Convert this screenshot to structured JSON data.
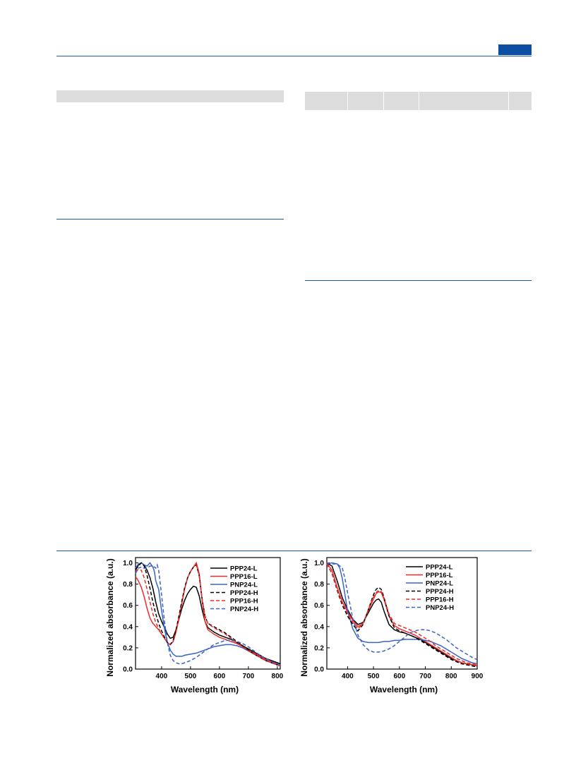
{
  "colors": {
    "header_rule": "#1b5aa6",
    "header_badge": "#0b4ea2",
    "table_band": "#dcdcdc",
    "series_black": "#000000",
    "series_red": "#ee2b2b",
    "series_blue": "#3a62c8"
  },
  "chart_data": [
    {
      "type": "line",
      "ylabel": "Normalized absorbance (a.u.)",
      "xlabel": "Wavelength (nm)",
      "xlim": [
        310,
        810
      ],
      "ylim": [
        0,
        1.05
      ],
      "xticks": [
        "400",
        "500",
        "600",
        "700",
        "800"
      ],
      "yticks": [
        "0.0",
        "0.2",
        "0.4",
        "0.6",
        "0.8",
        "1.0"
      ],
      "legend_position": "top-right",
      "series": [
        {
          "name": "PPP24-L",
          "color": "#000000",
          "dash": "solid",
          "x": [
            310,
            320,
            330,
            340,
            350,
            360,
            370,
            380,
            390,
            400,
            410,
            420,
            430,
            440,
            450,
            460,
            470,
            480,
            490,
            500,
            510,
            520,
            530,
            540,
            550,
            560,
            580,
            600,
            620,
            640,
            660,
            680,
            700,
            720,
            740,
            760,
            780,
            800,
            810
          ],
          "y": [
            0.93,
            0.98,
            1.0,
            0.98,
            0.93,
            0.86,
            0.76,
            0.63,
            0.52,
            0.45,
            0.39,
            0.33,
            0.29,
            0.3,
            0.37,
            0.47,
            0.57,
            0.65,
            0.71,
            0.75,
            0.78,
            0.77,
            0.69,
            0.56,
            0.45,
            0.39,
            0.35,
            0.32,
            0.3,
            0.28,
            0.25,
            0.22,
            0.19,
            0.16,
            0.13,
            0.1,
            0.08,
            0.06,
            0.05
          ]
        },
        {
          "name": "PPP16-L",
          "color": "#ee2b2b",
          "dash": "solid",
          "x": [
            310,
            320,
            330,
            340,
            350,
            360,
            370,
            380,
            390,
            400,
            410,
            420,
            430,
            440,
            450,
            460,
            470,
            480,
            490,
            500,
            510,
            520,
            530,
            540,
            550,
            560,
            580,
            600,
            620,
            640,
            660,
            680,
            700,
            720,
            740,
            760,
            780,
            800,
            810
          ],
          "y": [
            0.87,
            0.83,
            0.77,
            0.68,
            0.57,
            0.48,
            0.43,
            0.4,
            0.37,
            0.33,
            0.29,
            0.25,
            0.23,
            0.26,
            0.35,
            0.48,
            0.62,
            0.76,
            0.86,
            0.92,
            0.96,
            1.0,
            0.9,
            0.65,
            0.45,
            0.37,
            0.33,
            0.3,
            0.28,
            0.26,
            0.24,
            0.21,
            0.18,
            0.15,
            0.12,
            0.09,
            0.07,
            0.05,
            0.04
          ]
        },
        {
          "name": "PNP24-L",
          "color": "#3a62c8",
          "dash": "solid",
          "x": [
            310,
            320,
            330,
            340,
            350,
            360,
            370,
            375,
            380,
            390,
            400,
            410,
            420,
            430,
            440,
            450,
            460,
            470,
            480,
            500,
            520,
            540,
            560,
            580,
            600,
            620,
            640,
            660,
            680,
            700,
            720,
            740,
            760,
            780,
            800,
            810
          ],
          "y": [
            0.95,
            0.99,
            1.0,
            0.98,
            0.97,
            1.0,
            0.96,
            0.92,
            0.83,
            0.75,
            0.55,
            0.38,
            0.25,
            0.18,
            0.14,
            0.12,
            0.12,
            0.12,
            0.13,
            0.14,
            0.15,
            0.17,
            0.19,
            0.21,
            0.22,
            0.23,
            0.23,
            0.22,
            0.2,
            0.17,
            0.14,
            0.11,
            0.08,
            0.06,
            0.04,
            0.03
          ]
        },
        {
          "name": "PPP24-H",
          "color": "#000000",
          "dash": "dashed",
          "x": [
            310,
            320,
            330,
            340,
            350,
            360,
            370,
            380,
            390,
            400,
            410,
            420,
            430,
            440,
            450,
            460,
            470,
            480,
            490,
            500,
            510,
            520,
            530,
            540,
            550,
            560,
            580,
            600,
            620,
            640,
            660,
            680,
            700,
            720,
            740,
            760,
            780,
            800,
            810
          ],
          "y": [
            0.94,
            0.97,
            1.0,
            0.97,
            0.88,
            0.76,
            0.63,
            0.52,
            0.43,
            0.36,
            0.3,
            0.25,
            0.23,
            0.27,
            0.37,
            0.5,
            0.64,
            0.77,
            0.86,
            0.92,
            0.96,
            0.98,
            0.88,
            0.66,
            0.5,
            0.43,
            0.4,
            0.37,
            0.34,
            0.3,
            0.26,
            0.22,
            0.18,
            0.14,
            0.11,
            0.08,
            0.06,
            0.04,
            0.03
          ]
        },
        {
          "name": "PPP16-H",
          "color": "#ee2b2b",
          "dash": "dashed",
          "x": [
            310,
            320,
            330,
            340,
            350,
            360,
            370,
            380,
            390,
            400,
            410,
            420,
            430,
            440,
            450,
            460,
            470,
            480,
            490,
            500,
            510,
            520,
            530,
            540,
            550,
            560,
            580,
            600,
            620,
            640,
            660,
            680,
            700,
            720,
            740,
            760,
            780,
            800,
            810
          ],
          "y": [
            0.92,
            0.94,
            0.93,
            0.86,
            0.75,
            0.63,
            0.52,
            0.44,
            0.38,
            0.33,
            0.29,
            0.25,
            0.23,
            0.26,
            0.35,
            0.48,
            0.62,
            0.76,
            0.86,
            0.92,
            0.96,
            0.99,
            0.88,
            0.66,
            0.5,
            0.43,
            0.39,
            0.36,
            0.33,
            0.29,
            0.25,
            0.21,
            0.17,
            0.14,
            0.11,
            0.08,
            0.06,
            0.04,
            0.03
          ]
        },
        {
          "name": "PNP24-H",
          "color": "#3a62c8",
          "dash": "dashed",
          "x": [
            310,
            320,
            330,
            340,
            350,
            360,
            370,
            380,
            385,
            390,
            400,
            410,
            420,
            430,
            440,
            450,
            460,
            470,
            480,
            500,
            520,
            540,
            560,
            580,
            600,
            620,
            640,
            660,
            680,
            700,
            720,
            740,
            760,
            780,
            800,
            810
          ],
          "y": [
            0.9,
            0.95,
            0.96,
            0.95,
            0.95,
            0.97,
            0.97,
            0.95,
            0.98,
            0.93,
            0.7,
            0.45,
            0.25,
            0.13,
            0.08,
            0.06,
            0.05,
            0.05,
            0.06,
            0.08,
            0.11,
            0.15,
            0.19,
            0.23,
            0.25,
            0.27,
            0.27,
            0.26,
            0.24,
            0.21,
            0.17,
            0.13,
            0.1,
            0.07,
            0.05,
            0.04
          ]
        }
      ]
    },
    {
      "type": "line",
      "ylabel": "Normalized absorbance (a.u.)",
      "xlabel": "Wavelength (nm)",
      "xlim": [
        320,
        900
      ],
      "ylim": [
        0,
        1.05
      ],
      "xticks": [
        "400",
        "500",
        "600",
        "700",
        "800",
        "900"
      ],
      "yticks": [
        "0.0",
        "0.2",
        "0.4",
        "0.6",
        "0.8",
        "1.0"
      ],
      "legend_position": "top-right",
      "series": [
        {
          "name": "PPP24-L",
          "color": "#000000",
          "dash": "solid",
          "x": [
            320,
            340,
            360,
            380,
            400,
            420,
            440,
            460,
            480,
            500,
            510,
            520,
            530,
            540,
            560,
            580,
            600,
            620,
            640,
            660,
            680,
            700,
            720,
            740,
            760,
            780,
            800,
            820,
            840,
            860,
            880,
            900
          ],
          "y": [
            1.0,
            0.97,
            0.83,
            0.67,
            0.56,
            0.47,
            0.42,
            0.44,
            0.53,
            0.62,
            0.65,
            0.66,
            0.63,
            0.55,
            0.42,
            0.37,
            0.35,
            0.34,
            0.32,
            0.3,
            0.28,
            0.25,
            0.22,
            0.19,
            0.16,
            0.13,
            0.1,
            0.08,
            0.06,
            0.05,
            0.04,
            0.03
          ]
        },
        {
          "name": "PPP16-L",
          "color": "#ee2b2b",
          "dash": "solid",
          "x": [
            320,
            340,
            360,
            380,
            400,
            420,
            440,
            460,
            480,
            500,
            510,
            520,
            530,
            540,
            560,
            580,
            600,
            620,
            640,
            660,
            680,
            700,
            720,
            740,
            760,
            780,
            800,
            820,
            840,
            860,
            880,
            900
          ],
          "y": [
            1.0,
            0.93,
            0.77,
            0.63,
            0.54,
            0.46,
            0.4,
            0.43,
            0.55,
            0.66,
            0.71,
            0.73,
            0.72,
            0.66,
            0.5,
            0.41,
            0.38,
            0.36,
            0.34,
            0.32,
            0.29,
            0.26,
            0.23,
            0.2,
            0.17,
            0.14,
            0.11,
            0.08,
            0.06,
            0.05,
            0.04,
            0.03
          ]
        },
        {
          "name": "PNP24-L",
          "color": "#3a62c8",
          "dash": "solid",
          "x": [
            320,
            340,
            360,
            370,
            380,
            390,
            400,
            420,
            440,
            460,
            480,
            500,
            520,
            540,
            560,
            580,
            600,
            620,
            640,
            660,
            680,
            700,
            720,
            740,
            760,
            780,
            800,
            820,
            840,
            860,
            880,
            900
          ],
          "y": [
            0.99,
            1.0,
            0.99,
            0.95,
            0.85,
            0.7,
            0.55,
            0.38,
            0.29,
            0.26,
            0.25,
            0.25,
            0.25,
            0.26,
            0.26,
            0.27,
            0.27,
            0.28,
            0.28,
            0.28,
            0.28,
            0.27,
            0.26,
            0.24,
            0.22,
            0.19,
            0.16,
            0.13,
            0.1,
            0.08,
            0.06,
            0.05
          ]
        },
        {
          "name": "PPP24-H",
          "color": "#000000",
          "dash": "dashed",
          "x": [
            320,
            340,
            360,
            380,
            400,
            420,
            440,
            460,
            480,
            500,
            510,
            520,
            530,
            540,
            560,
            580,
            600,
            620,
            640,
            660,
            680,
            700,
            720,
            740,
            760,
            780,
            800,
            820,
            840,
            860,
            880,
            900
          ],
          "y": [
            0.99,
            0.9,
            0.74,
            0.6,
            0.5,
            0.42,
            0.36,
            0.42,
            0.56,
            0.7,
            0.75,
            0.77,
            0.75,
            0.68,
            0.5,
            0.39,
            0.36,
            0.34,
            0.32,
            0.3,
            0.27,
            0.24,
            0.21,
            0.18,
            0.15,
            0.12,
            0.09,
            0.07,
            0.05,
            0.04,
            0.03,
            0.02
          ]
        },
        {
          "name": "PPP16-H",
          "color": "#ee2b2b",
          "dash": "dashed",
          "x": [
            320,
            340,
            360,
            380,
            400,
            420,
            440,
            460,
            480,
            500,
            510,
            520,
            530,
            540,
            560,
            580,
            600,
            620,
            640,
            660,
            680,
            700,
            720,
            740,
            760,
            780,
            800,
            820,
            840,
            860,
            880,
            900
          ],
          "y": [
            0.99,
            0.9,
            0.75,
            0.62,
            0.52,
            0.44,
            0.38,
            0.43,
            0.56,
            0.68,
            0.72,
            0.74,
            0.73,
            0.67,
            0.52,
            0.43,
            0.41,
            0.39,
            0.37,
            0.35,
            0.32,
            0.29,
            0.26,
            0.22,
            0.19,
            0.16,
            0.13,
            0.1,
            0.08,
            0.06,
            0.05,
            0.04
          ]
        },
        {
          "name": "PNP24-H",
          "color": "#3a62c8",
          "dash": "dashed",
          "x": [
            320,
            340,
            360,
            380,
            390,
            400,
            420,
            440,
            460,
            480,
            500,
            520,
            540,
            560,
            580,
            600,
            620,
            640,
            660,
            680,
            700,
            720,
            740,
            760,
            780,
            800,
            820,
            840,
            860,
            880,
            900
          ],
          "y": [
            1.0,
            0.99,
            0.99,
            0.95,
            0.85,
            0.72,
            0.48,
            0.32,
            0.23,
            0.18,
            0.16,
            0.16,
            0.17,
            0.19,
            0.22,
            0.26,
            0.3,
            0.34,
            0.36,
            0.37,
            0.37,
            0.36,
            0.34,
            0.31,
            0.28,
            0.24,
            0.2,
            0.17,
            0.14,
            0.11,
            0.09
          ]
        }
      ]
    }
  ]
}
